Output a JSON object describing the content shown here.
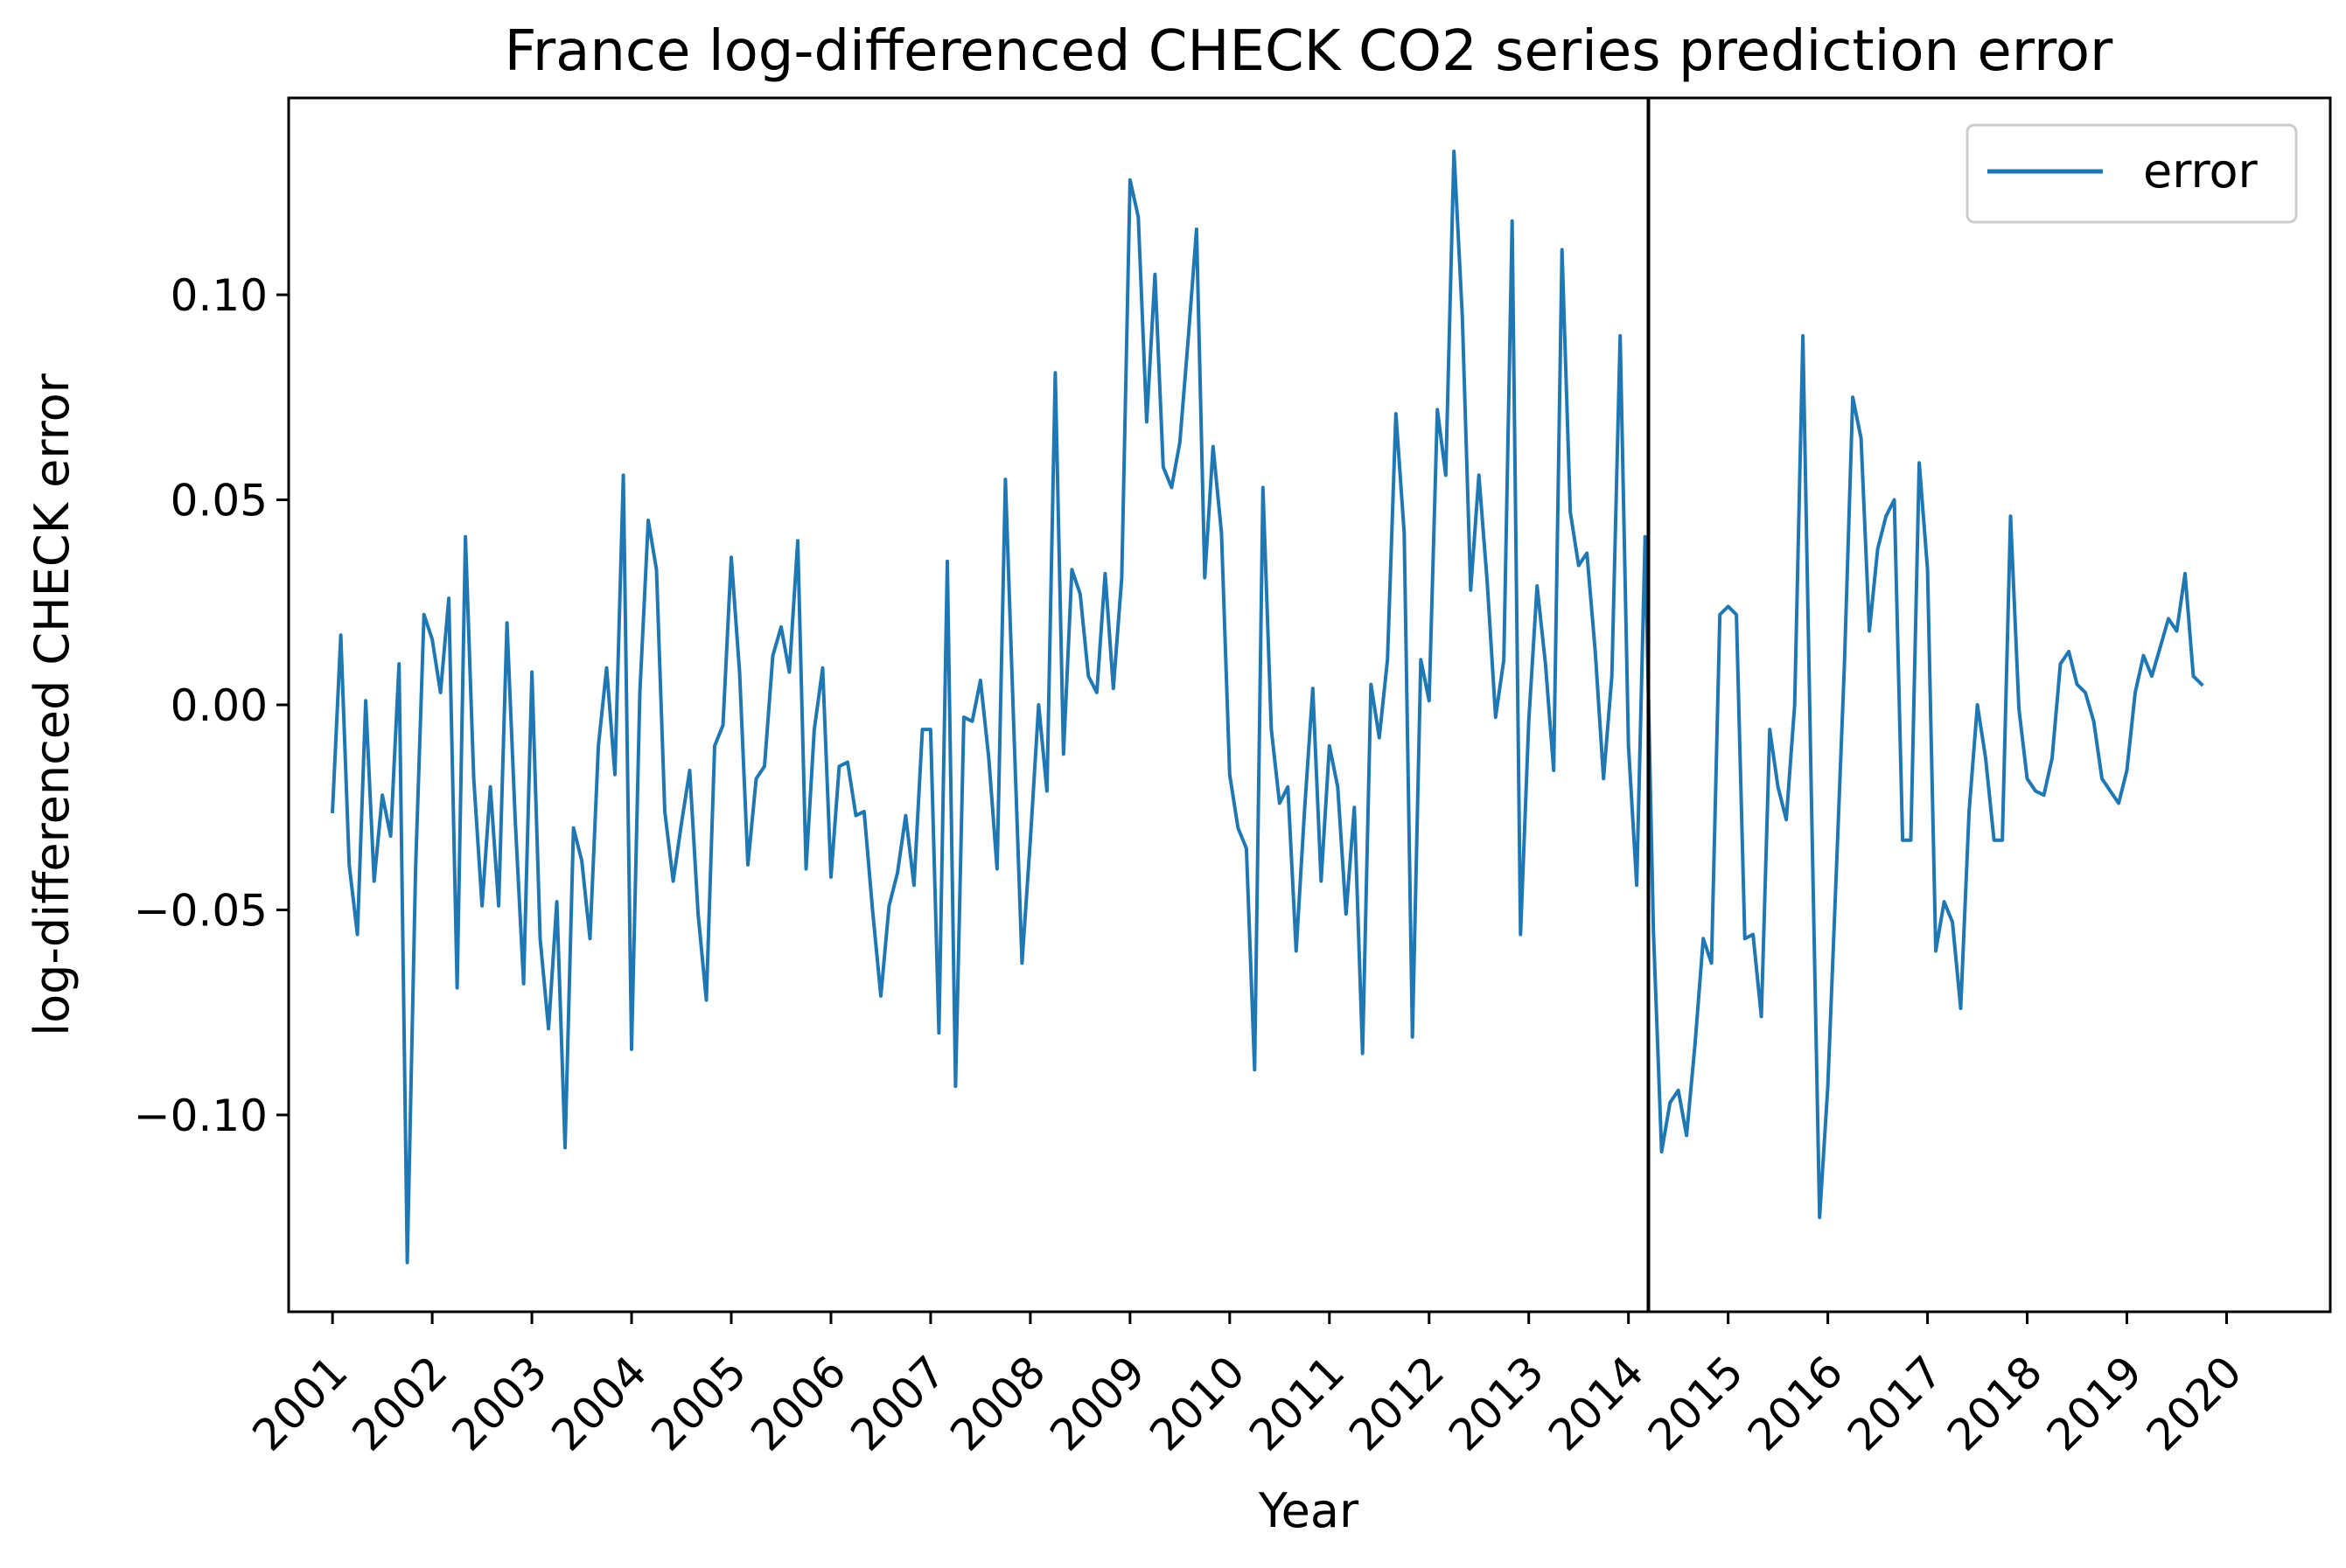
{
  "chart_data": {
    "type": "line",
    "title": "France log-differenced CHECK CO2 series prediction error",
    "xlabel": "Year",
    "ylabel": "log-differenced CHECK error",
    "xlim": [
      2000.56,
      2021.04
    ],
    "ylim": [
      -0.148,
      0.148
    ],
    "x_ticks": [
      {
        "value": 2001,
        "label": "2001"
      },
      {
        "value": 2002,
        "label": "2002"
      },
      {
        "value": 2003,
        "label": "2003"
      },
      {
        "value": 2004,
        "label": "2004"
      },
      {
        "value": 2005,
        "label": "2005"
      },
      {
        "value": 2006,
        "label": "2006"
      },
      {
        "value": 2007,
        "label": "2007"
      },
      {
        "value": 2008,
        "label": "2008"
      },
      {
        "value": 2009,
        "label": "2009"
      },
      {
        "value": 2010,
        "label": "2010"
      },
      {
        "value": 2011,
        "label": "2011"
      },
      {
        "value": 2012,
        "label": "2012"
      },
      {
        "value": 2013,
        "label": "2013"
      },
      {
        "value": 2014,
        "label": "2014"
      },
      {
        "value": 2015,
        "label": "2015"
      },
      {
        "value": 2016,
        "label": "2016"
      },
      {
        "value": 2017,
        "label": "2017"
      },
      {
        "value": 2018,
        "label": "2018"
      },
      {
        "value": 2019,
        "label": "2019"
      },
      {
        "value": 2020,
        "label": "2020"
      }
    ],
    "y_ticks": [
      {
        "value": 0.1,
        "label": "0.10"
      },
      {
        "value": 0.05,
        "label": "0.05"
      },
      {
        "value": 0.0,
        "label": "0.00"
      },
      {
        "value": -0.05,
        "label": "−0.05"
      },
      {
        "value": -0.1,
        "label": "−0.10"
      }
    ],
    "vline": {
      "x": 2014.2,
      "color": "#000000"
    },
    "grid": false,
    "legend": {
      "position": "top-right",
      "entries": [
        {
          "label": "error",
          "color": "#1f77b4"
        }
      ]
    },
    "series": [
      {
        "name": "error",
        "color": "#1f77b4",
        "x": [
          2001.0,
          2001.083,
          2001.167,
          2001.25,
          2001.333,
          2001.417,
          2001.5,
          2001.583,
          2001.667,
          2001.75,
          2001.833,
          2001.917,
          2002.0,
          2002.083,
          2002.167,
          2002.25,
          2002.333,
          2002.417,
          2002.5,
          2002.583,
          2002.667,
          2002.75,
          2002.833,
          2002.917,
          2003.0,
          2003.083,
          2003.167,
          2003.25,
          2003.333,
          2003.417,
          2003.5,
          2003.583,
          2003.667,
          2003.75,
          2003.833,
          2003.917,
          2004.0,
          2004.083,
          2004.167,
          2004.25,
          2004.333,
          2004.417,
          2004.5,
          2004.583,
          2004.667,
          2004.75,
          2004.833,
          2004.917,
          2005.0,
          2005.083,
          2005.167,
          2005.25,
          2005.333,
          2005.417,
          2005.5,
          2005.583,
          2005.667,
          2005.75,
          2005.833,
          2005.917,
          2006.0,
          2006.083,
          2006.167,
          2006.25,
          2006.333,
          2006.417,
          2006.5,
          2006.583,
          2006.667,
          2006.75,
          2006.833,
          2006.917,
          2007.0,
          2007.083,
          2007.167,
          2007.25,
          2007.333,
          2007.417,
          2007.5,
          2007.583,
          2007.667,
          2007.75,
          2007.833,
          2007.917,
          2008.0,
          2008.083,
          2008.167,
          2008.25,
          2008.333,
          2008.417,
          2008.5,
          2008.583,
          2008.667,
          2008.75,
          2008.833,
          2008.917,
          2009.0,
          2009.083,
          2009.167,
          2009.25,
          2009.333,
          2009.417,
          2009.5,
          2009.583,
          2009.667,
          2009.75,
          2009.833,
          2009.917,
          2010.0,
          2010.083,
          2010.167,
          2010.25,
          2010.333,
          2010.417,
          2010.5,
          2010.583,
          2010.667,
          2010.75,
          2010.833,
          2010.917,
          2011.0,
          2011.083,
          2011.167,
          2011.25,
          2011.333,
          2011.417,
          2011.5,
          2011.583,
          2011.667,
          2011.75,
          2011.833,
          2011.917,
          2012.0,
          2012.083,
          2012.167,
          2012.25,
          2012.333,
          2012.417,
          2012.5,
          2012.583,
          2012.667,
          2012.75,
          2012.833,
          2012.917,
          2013.0,
          2013.083,
          2013.167,
          2013.25,
          2013.333,
          2013.417,
          2013.5,
          2013.583,
          2013.667,
          2013.75,
          2013.833,
          2013.917,
          2014.0,
          2014.083,
          2014.167,
          2014.25,
          2014.333,
          2014.417,
          2014.5,
          2014.583,
          2014.667,
          2014.75,
          2014.833,
          2014.917,
          2015.0,
          2015.083,
          2015.167,
          2015.25,
          2015.333,
          2015.417,
          2015.5,
          2015.583,
          2015.667,
          2015.75,
          2015.833,
          2015.917,
          2016.0,
          2016.083,
          2016.167,
          2016.25,
          2016.333,
          2016.417,
          2016.5,
          2016.583,
          2016.667,
          2016.75,
          2016.833,
          2016.917,
          2017.0,
          2017.083,
          2017.167,
          2017.25,
          2017.333,
          2017.417,
          2017.5,
          2017.583,
          2017.667,
          2017.75,
          2017.833,
          2017.917,
          2018.0,
          2018.083,
          2018.167,
          2018.25,
          2018.333,
          2018.417,
          2018.5,
          2018.583,
          2018.667,
          2018.75,
          2018.833,
          2018.917,
          2019.0,
          2019.083,
          2019.167,
          2019.25,
          2019.333,
          2019.417,
          2019.5,
          2019.583,
          2019.667,
          2019.75
        ],
        "y": [
          -0.026,
          0.017,
          -0.039,
          -0.056,
          0.001,
          -0.043,
          -0.022,
          -0.032,
          0.01,
          -0.136,
          -0.04,
          0.022,
          0.016,
          0.003,
          0.026,
          -0.069,
          0.041,
          -0.018,
          -0.049,
          -0.02,
          -0.049,
          0.02,
          -0.028,
          -0.068,
          0.008,
          -0.057,
          -0.079,
          -0.048,
          -0.108,
          -0.03,
          -0.038,
          -0.057,
          -0.01,
          0.009,
          -0.017,
          0.056,
          -0.084,
          0.003,
          0.045,
          0.033,
          -0.026,
          -0.043,
          -0.029,
          -0.016,
          -0.051,
          -0.072,
          -0.01,
          -0.005,
          0.036,
          0.008,
          -0.039,
          -0.018,
          -0.015,
          0.012,
          0.019,
          0.008,
          0.04,
          -0.04,
          -0.006,
          0.009,
          -0.042,
          -0.015,
          -0.014,
          -0.027,
          -0.026,
          -0.05,
          -0.071,
          -0.049,
          -0.041,
          -0.027,
          -0.044,
          -0.006,
          -0.006,
          -0.08,
          0.035,
          -0.093,
          -0.003,
          -0.004,
          0.006,
          -0.013,
          -0.04,
          0.055,
          -0.005,
          -0.063,
          -0.033,
          0.0,
          -0.021,
          0.081,
          -0.012,
          0.033,
          0.027,
          0.007,
          0.003,
          0.032,
          0.004,
          0.031,
          0.128,
          0.119,
          0.069,
          0.105,
          0.058,
          0.053,
          0.064,
          0.089,
          0.116,
          0.031,
          0.063,
          0.042,
          -0.017,
          -0.03,
          -0.035,
          -0.089,
          0.053,
          -0.006,
          -0.024,
          -0.02,
          -0.06,
          -0.026,
          0.004,
          -0.043,
          -0.01,
          -0.02,
          -0.051,
          -0.025,
          -0.085,
          0.005,
          -0.008,
          0.011,
          0.071,
          0.042,
          -0.081,
          0.011,
          0.001,
          0.072,
          0.056,
          0.135,
          0.095,
          0.028,
          0.056,
          0.03,
          -0.003,
          0.011,
          0.118,
          -0.056,
          -0.004,
          0.029,
          0.01,
          -0.016,
          0.111,
          0.047,
          0.034,
          0.037,
          0.013,
          -0.018,
          0.007,
          0.09,
          -0.01,
          -0.044,
          0.041,
          -0.055,
          -0.109,
          -0.097,
          -0.094,
          -0.105,
          -0.083,
          -0.057,
          -0.063,
          0.022,
          0.024,
          0.022,
          -0.057,
          -0.056,
          -0.076,
          -0.006,
          -0.02,
          -0.028,
          0.0,
          0.09,
          -0.02,
          -0.125,
          -0.093,
          -0.042,
          0.01,
          0.075,
          0.065,
          0.018,
          0.038,
          0.046,
          0.05,
          -0.033,
          -0.033,
          0.059,
          0.033,
          -0.06,
          -0.048,
          -0.053,
          -0.074,
          -0.026,
          0.0,
          -0.013,
          -0.033,
          -0.033,
          0.046,
          -0.001,
          -0.018,
          -0.021,
          -0.022,
          -0.013,
          0.01,
          0.013,
          0.005,
          0.003,
          -0.004,
          -0.018,
          -0.021,
          -0.024,
          -0.016,
          0.003,
          0.012,
          0.007,
          0.014,
          0.021,
          0.018,
          0.032,
          0.007,
          0.005
        ]
      }
    ]
  }
}
